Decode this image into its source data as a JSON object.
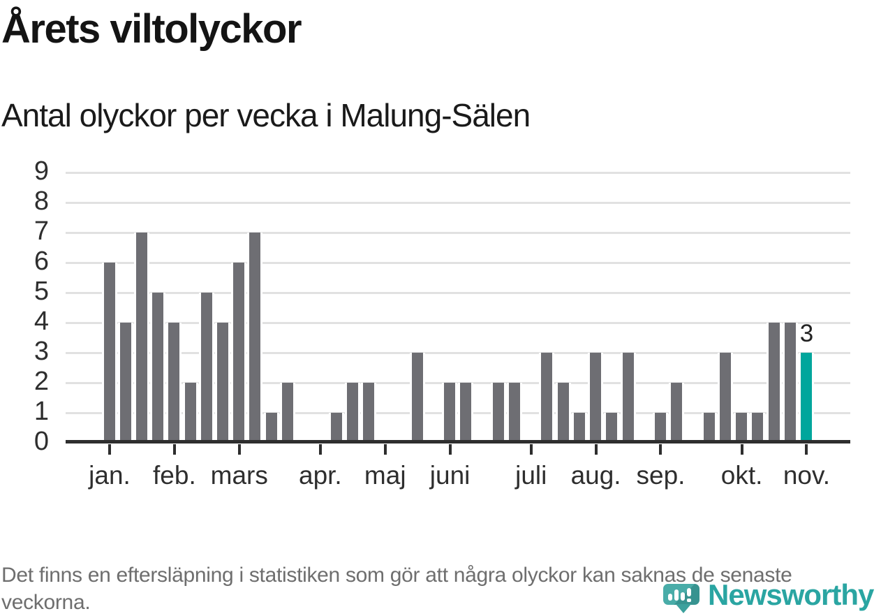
{
  "title": {
    "text": "Årets viltolyckor"
  },
  "subtitle": {
    "text": "Antal olyckor per vecka i Malung-Sälen"
  },
  "chart_data": {
    "type": "bar",
    "title": "Årets viltolyckor",
    "subtitle": "Antal olyckor per vecka i Malung-Sälen",
    "x_unit": "vecka (en stapel per vecka, januari till november)",
    "values": [
      6,
      4,
      7,
      5,
      4,
      2,
      5,
      4,
      6,
      7,
      1,
      2,
      0,
      0,
      1,
      2,
      2,
      0,
      0,
      3,
      0,
      2,
      2,
      0,
      2,
      2,
      0,
      3,
      2,
      1,
      3,
      1,
      3,
      0,
      1,
      2,
      0,
      1,
      3,
      1,
      1,
      4,
      4,
      3
    ],
    "month_ticks": [
      {
        "label": "jan.",
        "slot": 0
      },
      {
        "label": "feb.",
        "slot": 4
      },
      {
        "label": "mars",
        "slot": 8
      },
      {
        "label": "apr.",
        "slot": 13
      },
      {
        "label": "maj",
        "slot": 17
      },
      {
        "label": "juni",
        "slot": 21
      },
      {
        "label": "juli",
        "slot": 26
      },
      {
        "label": "aug.",
        "slot": 30
      },
      {
        "label": "sep.",
        "slot": 34
      },
      {
        "label": "okt.",
        "slot": 39
      },
      {
        "label": "nov.",
        "slot": 43
      }
    ],
    "y_ticks": [
      0,
      1,
      2,
      3,
      4,
      5,
      6,
      7,
      8,
      9
    ],
    "ylim": [
      0,
      9
    ],
    "grid": "horizontal",
    "legend": "none",
    "highlight": {
      "index": 43,
      "value": 3,
      "label": "3"
    },
    "colors": {
      "bar": "#6e6e73",
      "highlight_bar": "#00a69c",
      "gridline": "#e1e1e1",
      "axis": "#2e2e2e",
      "axis_label": "#2e2e2e",
      "title": "#141414",
      "annotation": "#222222",
      "footer_text": "#6e6e6e",
      "logo_teal": "#2aa5a2"
    }
  },
  "footer": {
    "text": "Det finns en eftersläpning i statistiken som gör att några olyckor kan saknas de senaste veckorna."
  },
  "logo": {
    "wordmark": "Newsworthy",
    "icon": "newsworthy-speech-bubble-bar-chart-icon"
  }
}
